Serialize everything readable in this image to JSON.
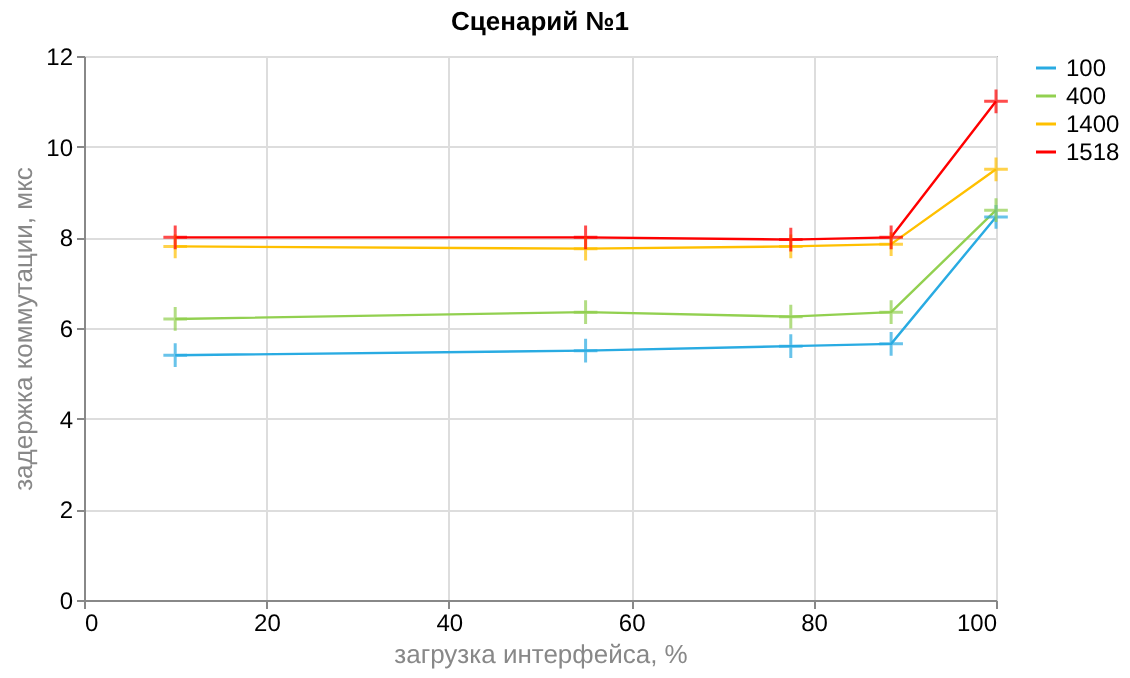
{
  "chart_data": {
    "type": "line",
    "title": "Сценарий №1",
    "xlabel": "загрузка интерфейса, %",
    "ylabel": "задержка коммутации, мкс",
    "x": [
      10,
      55,
      77.5,
      88.5,
      100
    ],
    "series": [
      {
        "name": "100",
        "color": "#29abe2",
        "values": [
          5.4,
          5.5,
          5.6,
          5.65,
          8.45
        ]
      },
      {
        "name": "400",
        "color": "#92d050",
        "values": [
          6.2,
          6.35,
          6.25,
          6.35,
          8.6
        ]
      },
      {
        "name": "1400",
        "color": "#ffc000",
        "values": [
          7.8,
          7.75,
          7.8,
          7.85,
          9.5
        ]
      },
      {
        "name": "1518",
        "color": "#ff0000",
        "values": [
          8.0,
          8.0,
          7.95,
          8.0,
          11.0
        ]
      }
    ],
    "xlim": [
      0,
      100
    ],
    "xticks": [
      0,
      20,
      40,
      60,
      80,
      100
    ],
    "ylim": [
      0,
      12
    ],
    "yticks": [
      0,
      2,
      4,
      6,
      8,
      10,
      12
    ],
    "grid": true,
    "legend": "right",
    "marker": "cross",
    "line_style": "solid"
  }
}
